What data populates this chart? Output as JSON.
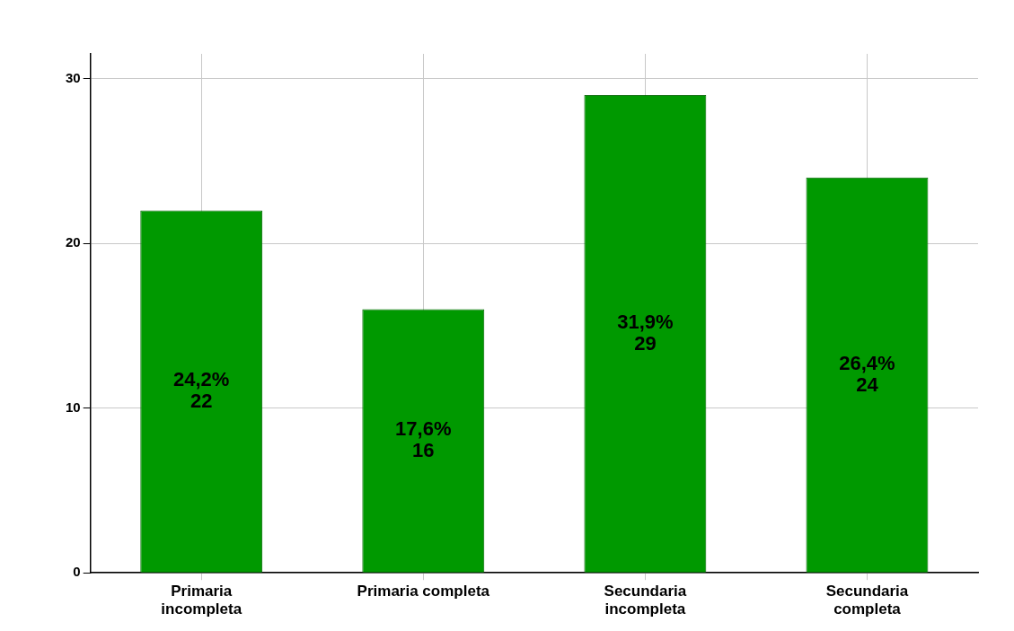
{
  "chart_data": {
    "type": "bar",
    "categories": [
      "Primaria incompleta",
      "Primaria completa",
      "Secundaria incompleta",
      "Secundaria completa"
    ],
    "values": [
      22,
      16,
      29,
      24
    ],
    "color": "#009900",
    "value_labels": [
      "24,2%\n22",
      "17,6%\n16",
      "31,9%\n29",
      "26,4%\n24"
    ],
    "ylim": [
      0,
      31.5
    ],
    "yticks": [
      0,
      10,
      20,
      30
    ],
    "grid": true,
    "legend": false
  }
}
